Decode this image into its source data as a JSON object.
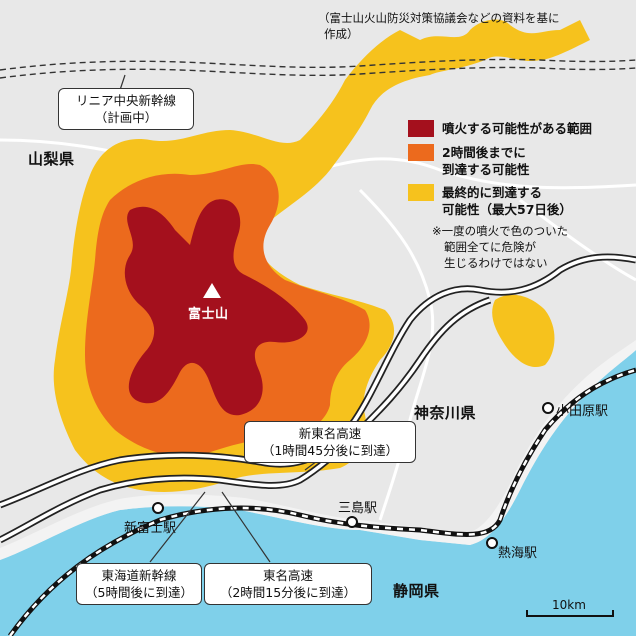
{
  "source_note": {
    "line1": "（富士山火山防災対策協議会などの資料を基に",
    "line2": "作成）"
  },
  "legend": {
    "items": [
      {
        "label_line1": "噴火する可能性がある範囲",
        "label_line2": "",
        "color": "#a4101d"
      },
      {
        "label_line1": "2時間後までに",
        "label_line2": "到達する可能性",
        "color": "#ec6a1d"
      },
      {
        "label_line1": "最終的に到達する",
        "label_line2": "可能性（最大57日後）",
        "color": "#f6c21d"
      }
    ],
    "note_line1": "※一度の噴火で色のついた",
    "note_line2": "範囲全てに危険が",
    "note_line3": "生じるわけではない"
  },
  "places": {
    "yamanashi": "山梨県",
    "kanagawa": "神奈川県",
    "shizuoka": "静岡県",
    "fujisan": "富士山"
  },
  "stations": {
    "shinfuji": "新富士駅",
    "mishima": "三島駅",
    "atami": "熱海駅",
    "odawara": "小田原駅"
  },
  "callouts": {
    "linear_line1": "リニア中央新幹線",
    "linear_line2": "（計画中）",
    "shintomei_line1": "新東名高速",
    "shintomei_line2": "（1時間45分後に到達）",
    "tokaido_line1": "東海道新幹線",
    "tokaido_line2": "（5時間後に到達）",
    "tomei_line1": "東名高速",
    "tomei_line2": "（2時間15分後に到達）"
  },
  "scale": {
    "label": "10km"
  },
  "colors": {
    "land": "#e8e8e8",
    "sea": "#7fd0ea",
    "crater_zone": "#a4101d",
    "two_hour_zone": "#ec6a1d",
    "final_zone": "#f6c21d"
  },
  "icons": {
    "peak": "triangle-icon",
    "station": "station-dot-icon"
  }
}
